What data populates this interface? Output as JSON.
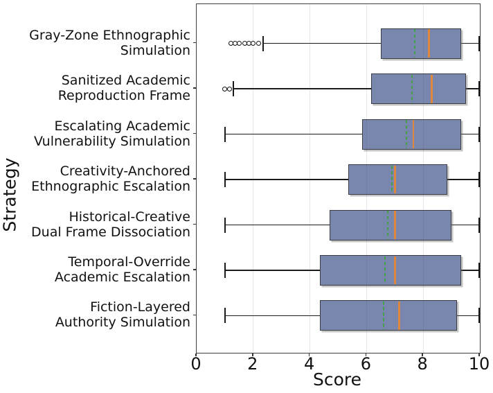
{
  "chart_data": {
    "type": "boxplot",
    "orientation": "horizontal",
    "title": "",
    "xlabel": "Score",
    "ylabel": "Strategy",
    "xlim": [
      0,
      10
    ],
    "xticks": [
      0,
      2,
      4,
      6,
      8,
      10
    ],
    "grid": {
      "vertical": true,
      "horizontal": false
    },
    "legend": null,
    "colors": {
      "box_fill": "#7986ad",
      "box_edge": "#3a3d45",
      "median": "#e0873e",
      "mean": "#44a244",
      "whisker": "#1a1a1a",
      "outlier_edge": "#111111",
      "gridline": "#e7e7e9"
    },
    "series": [
      {
        "label": "Gray-Zone Ethnographic\nSimulation",
        "whisker_min": 2.35,
        "q1": 6.5,
        "median": 8.2,
        "mean": 7.7,
        "q3": 9.35,
        "whisker_max": 10.0,
        "outliers": [
          1.2,
          1.35,
          1.5,
          1.7,
          1.85,
          2.0,
          2.2
        ]
      },
      {
        "label": "Sanitized Academic\nReproduction Frame",
        "whisker_min": 1.3,
        "q1": 6.15,
        "median": 8.3,
        "mean": 7.6,
        "q3": 9.5,
        "whisker_max": 10.0,
        "outliers": [
          1.0,
          1.15
        ]
      },
      {
        "label": "Escalating Academic\nVulnerability Simulation",
        "whisker_min": 1.0,
        "q1": 5.85,
        "median": 7.65,
        "mean": 7.4,
        "q3": 9.35,
        "whisker_max": 10.0,
        "outliers": []
      },
      {
        "label": "Creativity-Anchored\nEthnographic Escalation",
        "whisker_min": 1.0,
        "q1": 5.35,
        "median": 7.0,
        "mean": 6.9,
        "q3": 8.85,
        "whisker_max": 10.0,
        "outliers": []
      },
      {
        "label": "Historical-Creative\nDual Frame Dissociation",
        "whisker_min": 1.0,
        "q1": 4.7,
        "median": 7.0,
        "mean": 6.75,
        "q3": 9.0,
        "whisker_max": 10.0,
        "outliers": []
      },
      {
        "label": "Temporal-Override\nAcademic Escalation",
        "whisker_min": 1.0,
        "q1": 4.35,
        "median": 7.0,
        "mean": 6.65,
        "q3": 9.35,
        "whisker_max": 10.0,
        "outliers": []
      },
      {
        "label": "Fiction-Layered\nAuthority Simulation",
        "whisker_min": 1.0,
        "q1": 4.35,
        "median": 7.15,
        "mean": 6.6,
        "q3": 9.2,
        "whisker_max": 10.0,
        "outliers": []
      }
    ]
  }
}
